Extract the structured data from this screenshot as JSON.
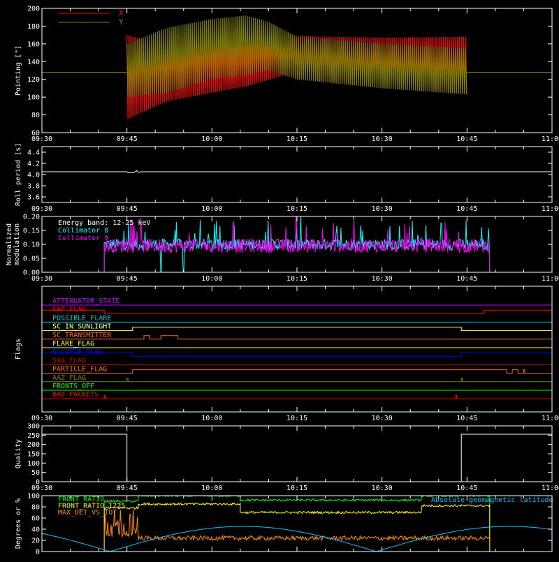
{
  "colors": {
    "background": "#000000",
    "axes": "#ffffff",
    "x_pointing": "#ff0000",
    "y_pointing": "#808000",
    "roll": "#ffffff",
    "collimator8": "#00ffff",
    "collimator9": "#ff00ff",
    "quality": "#ffffff",
    "front_ratio": "#00ff00",
    "front_ratio_1225": "#ffff00",
    "max_det": "#ff8c00",
    "geomag": "#00c8ff"
  },
  "time_axis": {
    "range": [
      "09:30",
      "11:00"
    ],
    "ticks": [
      "09:30",
      "09:45",
      "10:00",
      "10:15",
      "10:30",
      "10:45",
      "11:00"
    ],
    "minor_minutes": 5
  },
  "chart_data": [
    {
      "id": "pointing",
      "type": "line",
      "ylabel": "Pointing [\"]",
      "ylim": [
        60,
        200
      ],
      "yticks": [
        "60",
        "80",
        "100",
        "120",
        "140",
        "160",
        "180",
        "200"
      ],
      "series": [
        {
          "name": "X",
          "constant_outside_data": 128,
          "x": [
            "09:45",
            "09:52",
            "10:00",
            "10:06",
            "10:13",
            "10:20",
            "10:30",
            "10:45"
          ],
          "upper": [
            170,
            158,
            162,
            158,
            170,
            168,
            167,
            168
          ],
          "lower": [
            75,
            95,
            105,
            112,
            125,
            118,
            115,
            104
          ]
        },
        {
          "name": "Y",
          "constant_outside_data": 128,
          "x": [
            "09:45",
            "09:52",
            "10:00",
            "10:06",
            "10:10",
            "10:15",
            "10:30",
            "10:45"
          ],
          "upper": [
            160,
            178,
            188,
            192,
            185,
            168,
            160,
            155
          ],
          "lower": [
            100,
            105,
            120,
            125,
            130,
            120,
            110,
            103
          ]
        }
      ]
    },
    {
      "id": "roll",
      "type": "line",
      "ylabel": "Roll period [s]",
      "ylim": [
        3.5,
        4.5
      ],
      "yticks": [
        "3.6",
        "3.8",
        "4.0",
        "4.2",
        "4.4"
      ],
      "series": [
        {
          "name": "",
          "x": [
            "09:30",
            "11:00"
          ],
          "values": [
            4.05,
            4.05
          ]
        }
      ]
    },
    {
      "id": "modulation",
      "type": "line",
      "ylabel": "Normalized modulation",
      "ylim": [
        0,
        0.2
      ],
      "yticks": [
        "0.00",
        "0.05",
        "0.10",
        "0.15",
        "0.20"
      ],
      "annotation": "Energy band: 12-25 keV",
      "data_range": [
        "09:41",
        "10:49"
      ],
      "series": [
        {
          "name": "Collimator 8",
          "mean": 0.1,
          "spread": 0.02
        },
        {
          "name": "Collimator 9",
          "mean": 0.095,
          "spread": 0.025
        }
      ],
      "dropouts": [
        "09:51",
        "09:55"
      ]
    },
    {
      "id": "flags",
      "type": "line",
      "ylabel": "Flags",
      "flags": [
        {
          "name": "ATTENUATOR_STATE",
          "color": "#c000ff",
          "high": []
        },
        {
          "name": "GAP_FLAG",
          "color": "#ff0000",
          "high": [
            [
              "09:30",
              "09:41"
            ],
            [
              "10:48",
              "11:00"
            ]
          ]
        },
        {
          "name": "POSSIBLE_FLARE",
          "color": "#00c8c8",
          "high": []
        },
        {
          "name": "SC_IN_SUNLIGHT",
          "color": "#ffff80",
          "high": [
            [
              "09:46",
              "10:44"
            ]
          ]
        },
        {
          "name": "SC_TRANSMITTER",
          "color": "#ff6040",
          "high": [
            [
              "09:48",
              "09:49"
            ],
            [
              "09:51",
              "09:54"
            ]
          ]
        },
        {
          "name": "FLARE_FLAG",
          "color": "#ffff00",
          "high": []
        },
        {
          "name": "ECLIPSE_FLAG",
          "color": "#0000ff",
          "high": [
            [
              "09:30",
              "09:46"
            ],
            [
              "10:44",
              "11:00"
            ]
          ]
        },
        {
          "name": "SAA_FLAG",
          "color": "#c00000",
          "high": []
        },
        {
          "name": "PARTICLE_FLAG",
          "color": "#ff7000",
          "high": [
            [
              "09:46",
              "10:52"
            ],
            [
              "10:53",
              "10:54"
            ],
            [
              "10:55",
              "10:55"
            ]
          ]
        },
        {
          "name": "AAZ_FLAG",
          "color": "#808000",
          "high": [
            [
              "09:45",
              "09:45"
            ],
            [
              "10:44",
              "10:44"
            ]
          ]
        },
        {
          "name": "FRONTS_OFF",
          "color": "#00ff00",
          "high": []
        },
        {
          "name": "BAD_PACKETS",
          "color": "#ff0000",
          "high": [
            [
              "09:41",
              "09:41"
            ],
            [
              "10:43",
              "10:43"
            ]
          ]
        }
      ]
    },
    {
      "id": "quality",
      "type": "line",
      "ylabel": "Quality",
      "ylim": [
        0,
        300
      ],
      "yticks": [
        "0",
        "50",
        "100",
        "150",
        "200",
        "250",
        "300"
      ],
      "series": [
        {
          "name": "",
          "x": [
            "09:30",
            "09:45",
            "09:45",
            "10:44",
            "10:44",
            "11:00"
          ],
          "values": [
            255,
            255,
            0,
            0,
            255,
            255
          ]
        }
      ]
    },
    {
      "id": "ratios",
      "type": "line",
      "ylabel": "Degrees or %",
      "ylim": [
        0,
        100
      ],
      "yticks": [
        "0",
        "20",
        "40",
        "60",
        "80",
        "100"
      ],
      "series": [
        {
          "name": "FRONT_RATIO",
          "color": "#00ff00",
          "segments": [
            [
              "09:41",
              "09:47",
              90
            ],
            [
              "09:47",
              "10:05",
              100
            ],
            [
              "10:05",
              "10:37",
              92
            ],
            [
              "10:37",
              "10:49",
              100
            ]
          ]
        },
        {
          "name": "FRONT_RATIO_1225",
          "color": "#ffff00",
          "segments": [
            [
              "09:41",
              "09:47",
              78
            ],
            [
              "09:47",
              "10:05",
              85
            ],
            [
              "10:05",
              "10:37",
              70
            ],
            [
              "10:37",
              "10:49",
              82
            ]
          ]
        },
        {
          "name": "MAX_DET_VS_TOT",
          "color": "#ff8c00",
          "segments": [
            [
              "09:41",
              "09:47",
              30
            ],
            [
              "09:47",
              "10:49",
              24
            ]
          ]
        },
        {
          "name": "Absolute geomagnetic latitude",
          "color": "#00c8ff",
          "shape": "abs_sine",
          "amplitude": 45,
          "period_minutes": 47,
          "zero_at": "09:42"
        }
      ]
    }
  ]
}
